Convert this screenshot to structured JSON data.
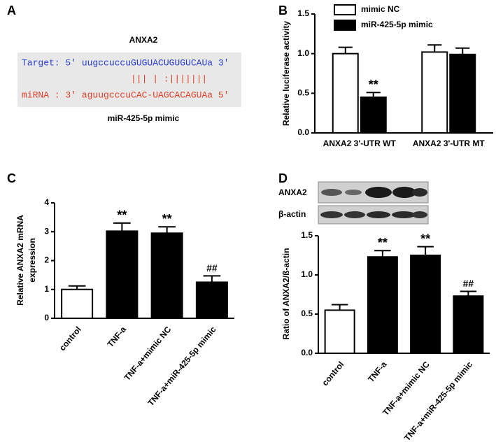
{
  "panel_labels": [
    "A",
    "B",
    "C",
    "D"
  ],
  "alignment": {
    "title": "ANXA2",
    "target": "Target: 5' uugccuccuGUGUACUGUGUCAUa 3'",
    "pairing": "||| | :|||||||",
    "mirna": "miRNA : 3' aguugcccuCAC-UAGCACAGUAa 5'",
    "caption": "miR-425-5p mimic"
  },
  "blot": {
    "labels": [
      "ANXA2",
      "β-actin"
    ]
  },
  "chart_data": [
    {
      "type": "bar",
      "ylabel": "Relative luciferase activity",
      "categories": [
        "ANXA2 3'-UTR WT",
        "ANXA2 3'-UTR MT"
      ],
      "series": [
        {
          "name": "mimic NC",
          "color": "#ffffff",
          "values": [
            1.0,
            1.02
          ],
          "errors": [
            0.08,
            0.09
          ],
          "annotations": [
            null,
            null
          ]
        },
        {
          "name": "miR-425-5p mimic",
          "color": "#000000",
          "values": [
            0.45,
            0.99
          ],
          "errors": [
            0.06,
            0.08
          ],
          "annotations": [
            "**",
            null
          ]
        }
      ],
      "ylim": [
        0,
        1.5
      ],
      "yticks": [
        {
          "value": 0,
          "label": "0.0"
        },
        {
          "value": 0.5,
          "label": "0.5"
        },
        {
          "value": 1,
          "label": "1.0"
        },
        {
          "value": 1.5,
          "label": "1.5"
        }
      ],
      "legend": "top-left"
    },
    {
      "type": "bar",
      "ylabel": [
        "Relative ANXA2 mRNA",
        "expression"
      ],
      "categories": [
        "control",
        "TNF-a",
        "TNF-a+mimic NC",
        "TNF-a+miR-425-5p mimic"
      ],
      "values": [
        1.0,
        3.02,
        2.95,
        1.25
      ],
      "errors": [
        0.12,
        0.28,
        0.22,
        0.22
      ],
      "colors": [
        "#ffffff",
        "#000000",
        "#000000",
        "#000000"
      ],
      "annotations": [
        null,
        "**",
        "**",
        "##"
      ],
      "ylim": [
        0,
        4
      ],
      "yticks": [
        0,
        1,
        2,
        3,
        4
      ]
    },
    {
      "type": "bar",
      "ylabel": "Ratio of ANXA2/ß-actin",
      "categories": [
        "control",
        "TNF-a",
        "TNF-a+mimic NC",
        "TNF-a+miR-425-5p mimic"
      ],
      "values": [
        0.55,
        1.23,
        1.25,
        0.73
      ],
      "errors": [
        0.07,
        0.08,
        0.11,
        0.06
      ],
      "colors": [
        "#ffffff",
        "#000000",
        "#000000",
        "#000000"
      ],
      "annotations": [
        null,
        "**",
        "**",
        "##"
      ],
      "ylim": [
        0,
        1.5
      ],
      "yticks": [
        {
          "value": 0,
          "label": "0.0"
        },
        {
          "value": 0.5,
          "label": "0.5"
        },
        {
          "value": 1,
          "label": "1.0"
        },
        {
          "value": 1.5,
          "label": "1.5"
        }
      ]
    }
  ]
}
